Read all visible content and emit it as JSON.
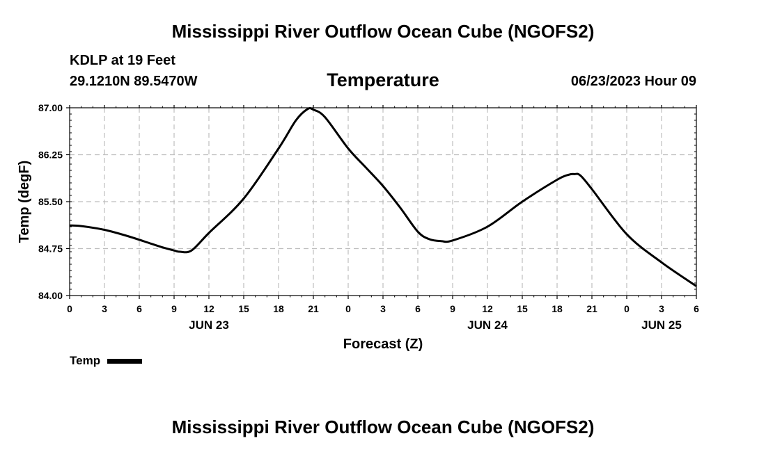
{
  "header": {
    "title": "Mississippi River Outflow Ocean Cube (NGOFS2)",
    "station": "KDLP at 19 Feet",
    "coordinates": "29.1210N  89.5470W",
    "subtitle": "Temperature",
    "datetime": "06/23/2023 Hour 09"
  },
  "footer": {
    "title": "Mississippi River Outflow Ocean Cube (NGOFS2)"
  },
  "legend": {
    "label": "Temp"
  },
  "chart_data": {
    "type": "line",
    "title": "Temperature",
    "xlabel": "Forecast (Z)",
    "ylabel": "Temp (degF)",
    "xlim": [
      0,
      54
    ],
    "ylim": [
      84.0,
      87.0
    ],
    "x_ticks": [
      0,
      3,
      6,
      9,
      12,
      15,
      18,
      21,
      24,
      27,
      30,
      33,
      36,
      39,
      42,
      45,
      48,
      51,
      54
    ],
    "x_tick_labels": [
      "0",
      "3",
      "6",
      "9",
      "12",
      "15",
      "18",
      "21",
      "0",
      "3",
      "6",
      "9",
      "12",
      "15",
      "18",
      "21",
      "0",
      "3",
      "6"
    ],
    "y_ticks": [
      84.0,
      84.75,
      85.5,
      86.25,
      87.0
    ],
    "y_tick_labels": [
      "84.00",
      "84.75",
      "85.50",
      "86.25",
      "87.00"
    ],
    "day_labels": [
      {
        "x": 12,
        "label": "JUN 23"
      },
      {
        "x": 36,
        "label": "JUN 24"
      },
      {
        "x": 51,
        "label": "JUN 25"
      }
    ],
    "grid": true,
    "series": [
      {
        "name": "Temp",
        "x": [
          0,
          1,
          3,
          5,
          7,
          8,
          9,
          9.5,
          10.5,
          12,
          15,
          18,
          19.5,
          20.5,
          21,
          22,
          24,
          25.5,
          27,
          28.5,
          30,
          31,
          32,
          33,
          36,
          39,
          42,
          43,
          43.5,
          44,
          45,
          48,
          51,
          54
        ],
        "y": [
          85.12,
          85.11,
          85.05,
          84.95,
          84.83,
          84.77,
          84.72,
          84.7,
          84.72,
          85.0,
          85.55,
          86.35,
          86.8,
          86.98,
          86.97,
          86.85,
          86.35,
          86.05,
          85.75,
          85.4,
          85.02,
          84.9,
          84.87,
          84.88,
          85.1,
          85.5,
          85.85,
          85.93,
          85.94,
          85.92,
          85.7,
          84.98,
          84.53,
          84.15
        ]
      }
    ]
  }
}
